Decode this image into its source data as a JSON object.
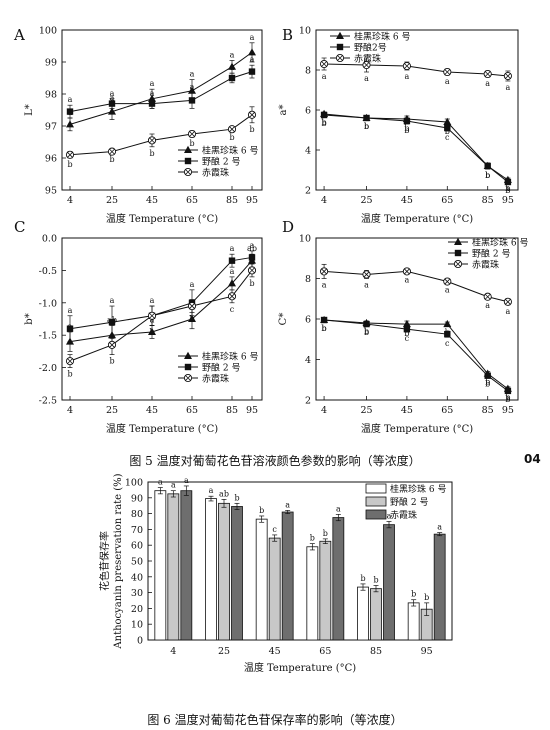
{
  "page_number": "04",
  "figure5_caption": "图 5 温度对葡萄花色苷溶液颜色参数的影响（等浓度）",
  "figure6_caption": "图 6 温度对葡萄花色苷保存率的影响（等浓度）",
  "chart_data": [
    {
      "type": "line",
      "panel": "A",
      "x": [
        4,
        25,
        45,
        65,
        85,
        95
      ],
      "xlabel": "温度 Temperature (°C)",
      "ylabel": "L*",
      "ylim": [
        95,
        100
      ],
      "yticks": [
        95,
        96,
        97,
        98,
        99,
        100
      ],
      "legend": "bottom-right",
      "series": [
        {
          "name": "桂黑珍珠 6 号",
          "marker": "triangle",
          "values": [
            97.05,
            97.45,
            97.85,
            98.1,
            98.85,
            99.3
          ],
          "err": [
            0.2,
            0.25,
            0.3,
            0.35,
            0.2,
            0.3
          ],
          "labels": [
            "a",
            "a",
            "a",
            "a",
            "a",
            "a"
          ]
        },
        {
          "name": "野酿 2 号",
          "marker": "square",
          "values": [
            97.45,
            97.7,
            97.7,
            97.8,
            98.5,
            98.7
          ],
          "err": [
            0.2,
            0.15,
            0.15,
            0.25,
            0.15,
            0.2
          ],
          "labels": [
            "a",
            "a",
            "a",
            "a",
            "a",
            "a"
          ]
        },
        {
          "name": "赤霞珠",
          "marker": "circle-x",
          "values": [
            96.1,
            96.2,
            96.55,
            96.75,
            96.9,
            97.35
          ],
          "err": [
            0.1,
            0.05,
            0.2,
            0.1,
            0.05,
            0.25
          ],
          "labels": [
            "b",
            "b",
            "b",
            "b",
            "b",
            "b"
          ]
        }
      ]
    },
    {
      "type": "line",
      "panel": "B",
      "x": [
        4,
        25,
        45,
        65,
        85,
        95
      ],
      "xlabel": "温度 Temperature (°C)",
      "ylabel": "a*",
      "ylim": [
        2,
        10
      ],
      "yticks": [
        2,
        4,
        6,
        8,
        10
      ],
      "legend": "top-left",
      "series": [
        {
          "name": "桂黑珍珠 6 号",
          "marker": "triangle",
          "values": [
            5.8,
            5.6,
            5.55,
            5.4,
            3.2,
            2.5
          ],
          "err": [
            0.1,
            0.1,
            0.15,
            0.15,
            0.15,
            0.1
          ],
          "labels": [
            "b",
            "b",
            "b",
            "b",
            "b",
            "b"
          ]
        },
        {
          "name": "野酿2号",
          "marker": "square",
          "values": [
            5.75,
            5.6,
            5.45,
            5.1,
            3.2,
            2.4
          ],
          "err": [
            0.1,
            0.1,
            0.15,
            0.15,
            0.15,
            0.1
          ],
          "labels": [
            "b",
            "b",
            "b",
            "c",
            "b",
            "b"
          ]
        },
        {
          "name": "赤霞珠",
          "marker": "circle-x",
          "values": [
            8.3,
            8.25,
            8.2,
            7.9,
            7.8,
            7.7
          ],
          "err": [
            0.3,
            0.35,
            0.2,
            0.15,
            0.15,
            0.25
          ],
          "labels": [
            "a",
            "a",
            "a",
            "a",
            "a",
            "a"
          ]
        }
      ]
    },
    {
      "type": "line",
      "panel": "C",
      "x": [
        4,
        25,
        45,
        65,
        85,
        95
      ],
      "xlabel": "温度 Temperature (°C)",
      "ylabel": "b*",
      "ylim": [
        -2.5,
        0
      ],
      "yticks": [
        -2.5,
        -2.0,
        -1.5,
        -1.0,
        -0.5,
        0.0
      ],
      "legend": "bottom-right",
      "series": [
        {
          "name": "桂黑珍珠 6 号",
          "marker": "triangle",
          "values": [
            -1.6,
            -1.5,
            -1.45,
            -1.25,
            -0.7,
            -0.35
          ],
          "err": [
            0.15,
            0.15,
            0.1,
            0.15,
            0.1,
            0.1
          ],
          "labels": [
            "a",
            "ab",
            "a",
            "a",
            "a",
            "ab"
          ]
        },
        {
          "name": "野酿 2 号",
          "marker": "square",
          "values": [
            -1.4,
            -1.3,
            -1.2,
            -1.0,
            -0.35,
            -0.3
          ],
          "err": [
            0.2,
            0.25,
            0.15,
            0.2,
            0.1,
            0.1
          ],
          "labels": [
            "a",
            "a",
            "a",
            "a",
            "a",
            "a"
          ]
        },
        {
          "name": "赤霞珠",
          "marker": "circle-x",
          "values": [
            -1.9,
            -1.65,
            -1.2,
            -1.05,
            -0.9,
            -0.5
          ],
          "err": [
            0.1,
            0.15,
            0.15,
            0.1,
            0.1,
            0.1
          ],
          "labels": [
            "b",
            "b",
            "b",
            "b",
            "c",
            "b"
          ]
        }
      ]
    },
    {
      "type": "line",
      "panel": "D",
      "x": [
        4,
        25,
        45,
        65,
        85,
        95
      ],
      "xlabel": "温度 Temperature (°C)",
      "ylabel": "C*",
      "ylim": [
        2,
        10
      ],
      "yticks": [
        2,
        4,
        6,
        8,
        10
      ],
      "legend": "top-left",
      "series": [
        {
          "name": "桂黑珍珠 6 号",
          "marker": "triangle",
          "values": [
            5.95,
            5.8,
            5.75,
            5.75,
            3.3,
            2.55
          ],
          "err": [
            0.1,
            0.1,
            0.15,
            0.1,
            0.1,
            0.1
          ],
          "labels": [
            "b",
            "b",
            "b",
            "b",
            "b",
            "b"
          ]
        },
        {
          "name": "野酿 2 号",
          "marker": "square",
          "values": [
            5.95,
            5.75,
            5.5,
            5.25,
            3.2,
            2.45
          ],
          "err": [
            0.1,
            0.1,
            0.15,
            0.15,
            0.1,
            0.1
          ],
          "labels": [
            "b",
            "b",
            "c",
            "c",
            "b",
            "b"
          ]
        },
        {
          "name": "赤霞珠",
          "marker": "circle-x",
          "values": [
            8.35,
            8.2,
            8.35,
            7.85,
            7.1,
            6.85
          ],
          "err": [
            0.35,
            0.2,
            0.1,
            0.1,
            0.1,
            0.15
          ],
          "labels": [
            "a",
            "a",
            "a",
            "a",
            "a",
            "a"
          ]
        }
      ]
    },
    {
      "type": "bar",
      "panel": "6",
      "categories": [
        "4",
        "25",
        "45",
        "65",
        "85",
        "95"
      ],
      "xlabel": "温度 Temperature (°C)",
      "ylabel_zh": "花色苷保存率",
      "ylabel": "Anthocyanin preservation rate (%)",
      "ylim": [
        0,
        100
      ],
      "yticks": [
        0,
        10,
        20,
        30,
        40,
        50,
        60,
        70,
        80,
        90,
        100
      ],
      "legend": "top-right",
      "series": [
        {
          "name": "桂黑珍珠 6 号",
          "color": "#ffffff",
          "values": [
            94.5,
            89.5,
            76.5,
            59,
            33.5,
            23.5
          ],
          "err": [
            2,
            1.5,
            2,
            2,
            2,
            2
          ],
          "labels": [
            "a",
            "a",
            "b",
            "b",
            "b",
            "b"
          ]
        },
        {
          "name": "野酿 2 号",
          "color": "#c8c8c8",
          "values": [
            92.5,
            86.5,
            64.5,
            62.5,
            32.5,
            19.5
          ],
          "err": [
            2,
            2.5,
            2,
            1.5,
            2,
            4
          ],
          "labels": [
            "a",
            "ab",
            "c",
            "b",
            "b",
            "b"
          ]
        },
        {
          "name": "赤霞珠",
          "color": "#6e6e6e",
          "values": [
            94.5,
            84.5,
            81,
            77.5,
            73,
            67
          ],
          "err": [
            3,
            2,
            1,
            2,
            2,
            1
          ],
          "labels": [
            "a",
            "b",
            "a",
            "a",
            "a",
            "a"
          ]
        }
      ]
    }
  ]
}
